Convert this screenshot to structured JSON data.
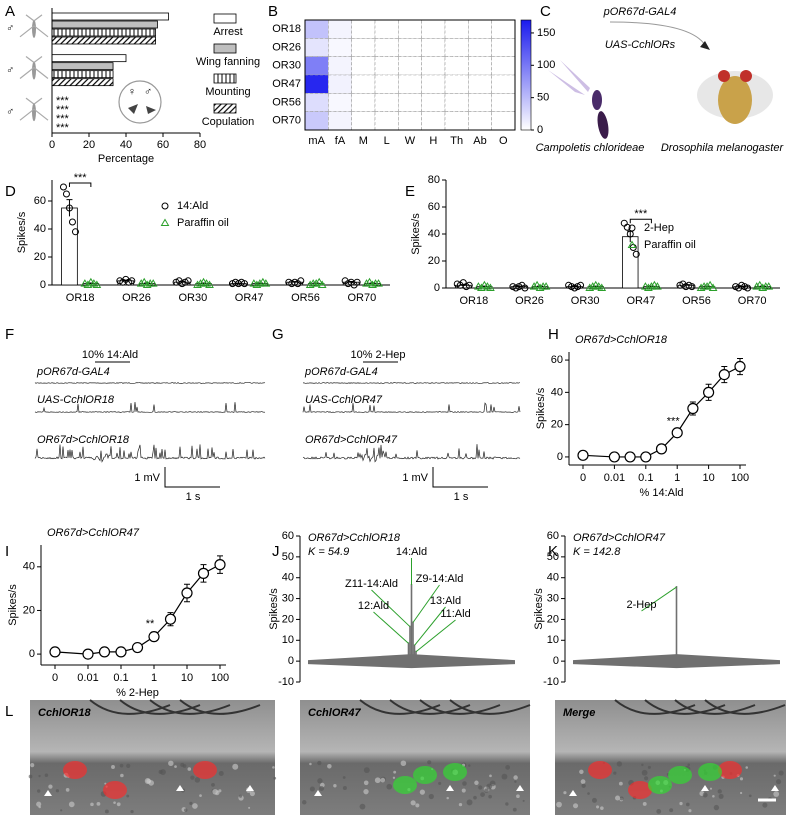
{
  "panel_labels": [
    "A",
    "B",
    "C",
    "D",
    "E",
    "F",
    "G",
    "H",
    "I",
    "J",
    "K",
    "L"
  ],
  "chart_data": [
    {
      "type": "hbar",
      "categories": [
        null,
        null,
        null
      ],
      "group_symbols": [
        "♂",
        "♂",
        "♂"
      ],
      "series": [
        {
          "name": "Arrest",
          "color": "#ffffff",
          "values": [
            63,
            40,
            0
          ]
        },
        {
          "name": "Wing fanning",
          "color": "#bfbfbf",
          "values": [
            57,
            33,
            0
          ]
        },
        {
          "name": "Mounting",
          "color": "#ffffff",
          "pattern": "vertical",
          "values": [
            56,
            33,
            0
          ]
        },
        {
          "name": "Copulation",
          "color": "#ffffff",
          "pattern": "diagonal",
          "values": [
            56,
            33,
            0
          ]
        }
      ],
      "xlim": [
        0,
        80
      ],
      "xticks": [
        0,
        20,
        40,
        60,
        80
      ],
      "xlabel": "Percentage",
      "annotations": [
        "***",
        "***",
        "***",
        "***"
      ],
      "inset_symbols": [
        "♀",
        "♂"
      ]
    },
    {
      "type": "heatmap",
      "rows": [
        "OR18",
        "OR26",
        "OR30",
        "OR47",
        "OR56",
        "OR70"
      ],
      "columns": [
        "mA",
        "fA",
        "M",
        "L",
        "W",
        "H",
        "Th",
        "Ab",
        "O"
      ],
      "values": [
        [
          45,
          8,
          0,
          0,
          0,
          0,
          0,
          0,
          0
        ],
        [
          20,
          5,
          0,
          0,
          0,
          0,
          0,
          0,
          0
        ],
        [
          95,
          8,
          0,
          0,
          0,
          0,
          0,
          0,
          0
        ],
        [
          160,
          10,
          0,
          0,
          0,
          0,
          0,
          0,
          0
        ],
        [
          25,
          5,
          0,
          0,
          0,
          0,
          0,
          0,
          0
        ],
        [
          40,
          8,
          0,
          0,
          0,
          0,
          0,
          0,
          0
        ]
      ],
      "color": "#1a1aee",
      "clim": [
        0,
        170
      ],
      "cticks": [
        0,
        50,
        100,
        150
      ]
    },
    {
      "type": "bar-scatter",
      "categories": [
        "OR18",
        "OR26",
        "OR30",
        "OR47",
        "OR56",
        "OR70"
      ],
      "series": [
        {
          "name": "14:Ald",
          "color": "#000000",
          "marker": "circle",
          "values": [
            55,
            3,
            2,
            1,
            2,
            2
          ],
          "errors": [
            6,
            0.5,
            0.4,
            0.3,
            0.4,
            0.5
          ],
          "points": [
            [
              70,
              65,
              55,
              45,
              38
            ],
            [
              3,
              2,
              4,
              2,
              3
            ],
            [
              2,
              3,
              1,
              2,
              3
            ],
            [
              1,
              2,
              1,
              2,
              1
            ],
            [
              2,
              1,
              2,
              1,
              3
            ],
            [
              3,
              1,
              2,
              0,
              2
            ]
          ]
        },
        {
          "name": "Paraffin oil",
          "color": "#2ca02c",
          "marker": "triangle",
          "values": [
            1,
            1,
            1,
            1,
            1,
            1
          ],
          "errors": [
            0.4,
            0.4,
            0.4,
            0.4,
            0.4,
            0.4
          ],
          "points": [
            [
              1,
              0,
              2,
              1,
              0
            ],
            [
              1,
              2,
              0,
              1,
              1
            ],
            [
              0,
              1,
              2,
              1,
              0
            ],
            [
              1,
              0,
              1,
              2,
              1
            ],
            [
              0,
              1,
              1,
              2,
              0
            ],
            [
              1,
              2,
              0,
              1,
              1
            ]
          ]
        }
      ],
      "significance": [
        "***",
        null,
        null,
        null,
        null,
        null
      ],
      "ylim": [
        0,
        75
      ],
      "yticks": [
        0,
        20,
        40,
        60
      ],
      "ylabel": "Spikes/s"
    },
    {
      "type": "bar-scatter",
      "categories": [
        "OR18",
        "OR26",
        "OR30",
        "OR47",
        "OR56",
        "OR70"
      ],
      "series": [
        {
          "name": "2-Hep",
          "color": "#000000",
          "marker": "circle",
          "values": [
            2,
            1,
            1,
            38,
            2,
            1
          ],
          "errors": [
            0.5,
            0.4,
            0.4,
            4,
            0.4,
            0.4
          ],
          "points": [
            [
              3,
              2,
              4,
              1,
              2
            ],
            [
              1,
              0,
              1,
              2,
              0
            ],
            [
              2,
              1,
              0,
              1,
              2
            ],
            [
              48,
              45,
              40,
              30,
              25
            ],
            [
              2,
              3,
              1,
              2,
              1
            ],
            [
              1,
              0,
              2,
              1,
              0
            ]
          ]
        },
        {
          "name": "Paraffin oil",
          "color": "#2ca02c",
          "marker": "triangle",
          "values": [
            1,
            1,
            1,
            1,
            1,
            1
          ],
          "errors": [
            0.4,
            0.4,
            0.4,
            0.4,
            0.4,
            0.4
          ],
          "points": [
            [
              1,
              0,
              2,
              1,
              0
            ],
            [
              1,
              2,
              0,
              1,
              1
            ],
            [
              0,
              1,
              2,
              1,
              0
            ],
            [
              1,
              0,
              1,
              2,
              1
            ],
            [
              0,
              1,
              1,
              2,
              0
            ],
            [
              1,
              2,
              0,
              1,
              1
            ]
          ]
        }
      ],
      "significance": [
        null,
        null,
        null,
        "***",
        null,
        null
      ],
      "ylim": [
        0,
        80
      ],
      "yticks": [
        0,
        20,
        40,
        60,
        80
      ],
      "ylabel": "Spikes/s"
    },
    {
      "type": "line",
      "title": "OR67d>CchlOR18",
      "categories": [
        "0",
        "0.01",
        null,
        "0.1",
        null,
        "1",
        null,
        "10",
        null,
        "100"
      ],
      "values": [
        1,
        0,
        0,
        0,
        5,
        15,
        30,
        40,
        51,
        56
      ],
      "errors": [
        1,
        1,
        1,
        2,
        2,
        2,
        4,
        5,
        5,
        5
      ],
      "significance": [
        null,
        null,
        null,
        null,
        null,
        "***",
        null,
        null,
        null,
        null
      ],
      "xlabel": "% 14:Ald",
      "ylabel": "Spikes/s",
      "ylim": [
        -5,
        65
      ],
      "yticks": [
        0,
        20,
        40,
        60
      ]
    },
    {
      "type": "line",
      "title": "OR67d>CchlOR47",
      "categories": [
        "0",
        "0.01",
        null,
        "0.1",
        null,
        "1",
        null,
        "10",
        null,
        "100"
      ],
      "values": [
        1,
        0,
        1,
        1,
        3,
        8,
        16,
        28,
        37,
        41
      ],
      "errors": [
        1,
        1,
        1,
        1,
        1,
        2,
        3,
        4,
        4,
        4
      ],
      "significance": [
        null,
        null,
        null,
        null,
        null,
        "**",
        null,
        null,
        null,
        null
      ],
      "xlabel": "% 2-Hep",
      "ylabel": "Spikes/s",
      "ylim": [
        -5,
        50
      ],
      "yticks": [
        0,
        20,
        40
      ]
    },
    {
      "type": "spike",
      "title": "OR67d>CchlOR18",
      "annotation": "K = 54.9",
      "categories": [
        "14:Ald",
        "Z11-14:Ald",
        "Z9-14:Ald",
        "12:Ald",
        "13:Ald",
        "11:Ald"
      ],
      "values": [
        37,
        17,
        19,
        9,
        8,
        5
      ],
      "ylim": [
        -10,
        60
      ],
      "yticks": [
        -10,
        0,
        10,
        20,
        30,
        40,
        50,
        60
      ],
      "ylabel": "Spikes/s",
      "color": "#707070",
      "label_color": "#2ca02c"
    },
    {
      "type": "spike",
      "title": "OR67d>CchlOR47",
      "annotation": "K = 142.8",
      "categories": [
        "2-Hep"
      ],
      "values": [
        36
      ],
      "ylim": [
        -10,
        60
      ],
      "yticks": [
        -10,
        0,
        10,
        20,
        30,
        40,
        50,
        60
      ],
      "ylabel": "Spikes/s",
      "color": "#707070",
      "label_color": "#2ca02c"
    }
  ],
  "illustration": {
    "construct_1": "pOR67d-GAL4",
    "construct_2": "UAS-CchlORs",
    "species_1": "Campoletis chlorideae",
    "species_2": "Drosophila melanogaster"
  },
  "traces": [
    {
      "stimulus": "10% 14:Ald",
      "rows": [
        "pOR67d-GAL4",
        "UAS-CchlOR18",
        "OR67d>CchlOR18"
      ],
      "scale_y": "1 mV",
      "scale_x": "1 s"
    },
    {
      "stimulus": "10% 2-Hep",
      "rows": [
        "pOR67d-GAL4",
        "UAS-CchlOR47",
        "OR67d>CchlOR47"
      ],
      "scale_y": "1 mV",
      "scale_x": "1 s"
    }
  ],
  "images": [
    {
      "label": "CchlOR18",
      "color": "#ff2a2a"
    },
    {
      "label": "CchlOR47",
      "color": "#2ee02e"
    },
    {
      "label": "Merge",
      "color": "#ffff00"
    }
  ]
}
